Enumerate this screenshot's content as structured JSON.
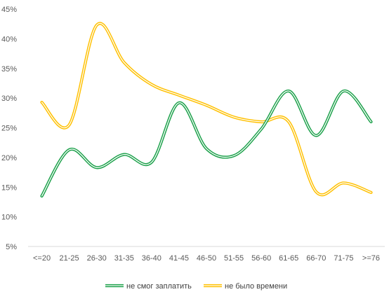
{
  "chart_data": {
    "type": "line",
    "title": "",
    "xlabel": "",
    "ylabel": "",
    "categories": [
      "<=20",
      "21-25",
      "26-30",
      "31-35",
      "36-40",
      "41-45",
      "46-50",
      "51-55",
      "56-60",
      "61-65",
      "66-70",
      "71-75",
      ">=76"
    ],
    "ylim": [
      5,
      45
    ],
    "yticks": [
      5,
      10,
      15,
      20,
      25,
      30,
      35,
      40,
      45
    ],
    "ytick_labels": [
      "5%",
      "10%",
      "15%",
      "20%",
      "25%",
      "30%",
      "35%",
      "40%",
      "45%"
    ],
    "grid": false,
    "legend_position": "bottom",
    "series": [
      {
        "name": "не смог заплатить",
        "color": "#1aa049",
        "values": [
          13.5,
          21.3,
          18.3,
          20.5,
          19.2,
          29.2,
          21.5,
          20.3,
          24.8,
          31.2,
          23.7,
          31.2,
          26.0
        ]
      },
      {
        "name": "не было времени",
        "color": "#ffc000",
        "values": [
          29.3,
          25.5,
          42.3,
          36.0,
          32.3,
          30.5,
          28.8,
          26.8,
          26.0,
          26.0,
          14.2,
          15.7,
          14.1
        ]
      }
    ]
  }
}
